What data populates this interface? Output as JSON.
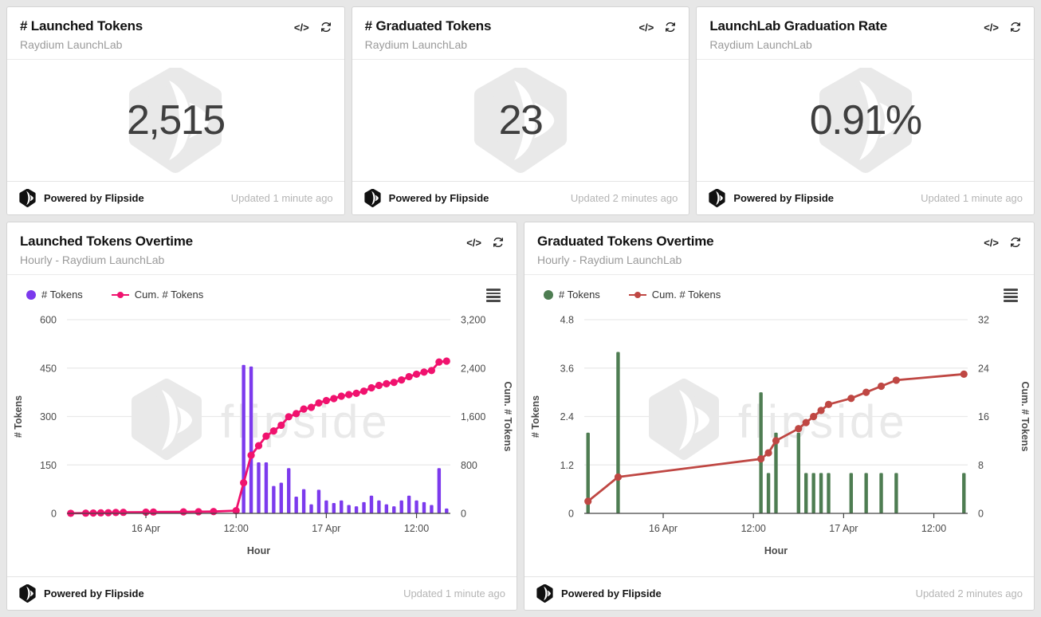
{
  "page": {
    "background": "#e7e7e7"
  },
  "brand": {
    "powered_by": "Powered by Flipside",
    "watermark_text": "flipside"
  },
  "icons": {
    "code_label": "</>",
    "refresh": "refresh-arrows",
    "menu": "hamburger"
  },
  "colors": {
    "card_bg": "#ffffff",
    "card_border": "#d4d4d4",
    "title_text": "#121212",
    "subtitle_text": "#9a9a9a",
    "stat_value_text": "#3f3f3f",
    "updated_text": "#b5b5b5",
    "axis_text": "#4a4a4a",
    "gridline": "#e9e9e9",
    "axis_line": "#444444",
    "watermark": "#e9e9e9",
    "launched_bar": "#7c3aed",
    "launched_line": "#f0126e",
    "graduated_bar": "#4e7d52",
    "graduated_line": "#bf4743"
  },
  "stat_cards": [
    {
      "title": "# Launched Tokens",
      "subtitle": "Raydium LaunchLab",
      "value": "2,515",
      "updated": "Updated 1 minute ago"
    },
    {
      "title": "# Graduated Tokens",
      "subtitle": "Raydium LaunchLab",
      "value": "23",
      "updated": "Updated 2 minutes ago"
    },
    {
      "title": "LaunchLab Graduation Rate",
      "subtitle": "Raydium LaunchLab",
      "value": "0.91%",
      "updated": "Updated 1 minute ago"
    }
  ],
  "chart_cards": [
    {
      "title": "Launched Tokens Overtime",
      "subtitle": "Hourly - Raydium LaunchLab",
      "updated": "Updated 1 minute ago"
    },
    {
      "title": "Graduated Tokens Overtime",
      "subtitle": "Hourly - Raydium LaunchLab",
      "updated": "Updated 2 minutes ago"
    }
  ],
  "chart_data": [
    {
      "type": "bar",
      "title": "Launched Tokens Overtime",
      "subtitle": "Hourly - Raydium LaunchLab",
      "xlabel": "Hour",
      "ylabel_left": "# Tokens",
      "ylabel_right": "Cum. # Tokens",
      "ylim_left": [
        0,
        600
      ],
      "yticks_left": [
        0,
        150,
        300,
        450,
        600
      ],
      "ytick_labels_left": [
        "0",
        "150",
        "300",
        "450",
        "600"
      ],
      "ylim_right": [
        0,
        3200
      ],
      "yticks_right": [
        0,
        800,
        1600,
        2400,
        3200
      ],
      "ytick_labels_right": [
        "0",
        "800",
        "1,600",
        "2,400",
        "3,200"
      ],
      "x_unit": "hour",
      "x_ticks": [
        {
          "slot": 10,
          "label": "16 Apr"
        },
        {
          "slot": 22,
          "label": "12:00"
        },
        {
          "slot": 34,
          "label": "17 Apr"
        },
        {
          "slot": 46,
          "label": "12:00"
        }
      ],
      "grid": "horizontal",
      "legend_position": "top-left",
      "series": [
        {
          "name": "# Tokens",
          "type": "bar",
          "axis": "left",
          "color": "#7c3aed",
          "values": [
            1,
            0,
            3,
            2,
            3,
            2,
            4,
            2,
            0,
            0,
            3,
            2,
            0,
            0,
            0,
            3,
            0,
            2,
            0,
            3,
            0,
            0,
            15,
            460,
            455,
            158,
            158,
            85,
            95,
            140,
            52,
            75,
            28,
            73,
            40,
            32,
            40,
            26,
            22,
            35,
            55,
            40,
            28,
            22,
            40,
            55,
            40,
            35,
            26,
            140,
            15
          ]
        },
        {
          "name": "Cum. # Tokens",
          "type": "line",
          "axis": "right",
          "color": "#f0126e",
          "derived": "cumulative_sum_of_bar_series",
          "final_value": 2515
        }
      ]
    },
    {
      "type": "bar",
      "title": "Graduated Tokens Overtime",
      "subtitle": "Hourly - Raydium LaunchLab",
      "xlabel": "Hour",
      "ylabel_left": "# Tokens",
      "ylabel_right": "Cum. # Tokens",
      "ylim_left": [
        0,
        4.8
      ],
      "yticks_left": [
        0,
        1.2,
        2.4,
        3.6,
        4.8
      ],
      "ytick_labels_left": [
        "0",
        "1.2",
        "2.4",
        "3.6",
        "4.8"
      ],
      "ylim_right": [
        0,
        32
      ],
      "yticks_right": [
        0,
        8,
        16,
        24,
        32
      ],
      "ytick_labels_right": [
        "0",
        "8",
        "16",
        "24",
        "32"
      ],
      "x_unit": "hour",
      "x_ticks": [
        {
          "slot": 10,
          "label": "16 Apr"
        },
        {
          "slot": 22,
          "label": "12:00"
        },
        {
          "slot": 34,
          "label": "17 Apr"
        },
        {
          "slot": 46,
          "label": "12:00"
        }
      ],
      "grid": "horizontal",
      "legend_position": "top-left",
      "series": [
        {
          "name": "# Tokens",
          "type": "bar",
          "axis": "left",
          "color": "#4e7d52",
          "values": [
            2,
            0,
            0,
            0,
            4,
            0,
            0,
            0,
            0,
            0,
            0,
            0,
            0,
            0,
            0,
            0,
            0,
            0,
            0,
            0,
            0,
            0,
            0,
            3,
            1,
            2,
            0,
            0,
            2,
            1,
            1,
            1,
            1,
            0,
            0,
            1,
            0,
            1,
            0,
            1,
            0,
            1,
            0,
            0,
            0,
            0,
            0,
            0,
            0,
            0,
            1
          ]
        },
        {
          "name": "Cum. # Tokens",
          "type": "line",
          "axis": "right",
          "color": "#bf4743",
          "derived": "cumulative_sum_of_bar_series",
          "final_value": 23
        }
      ]
    }
  ]
}
